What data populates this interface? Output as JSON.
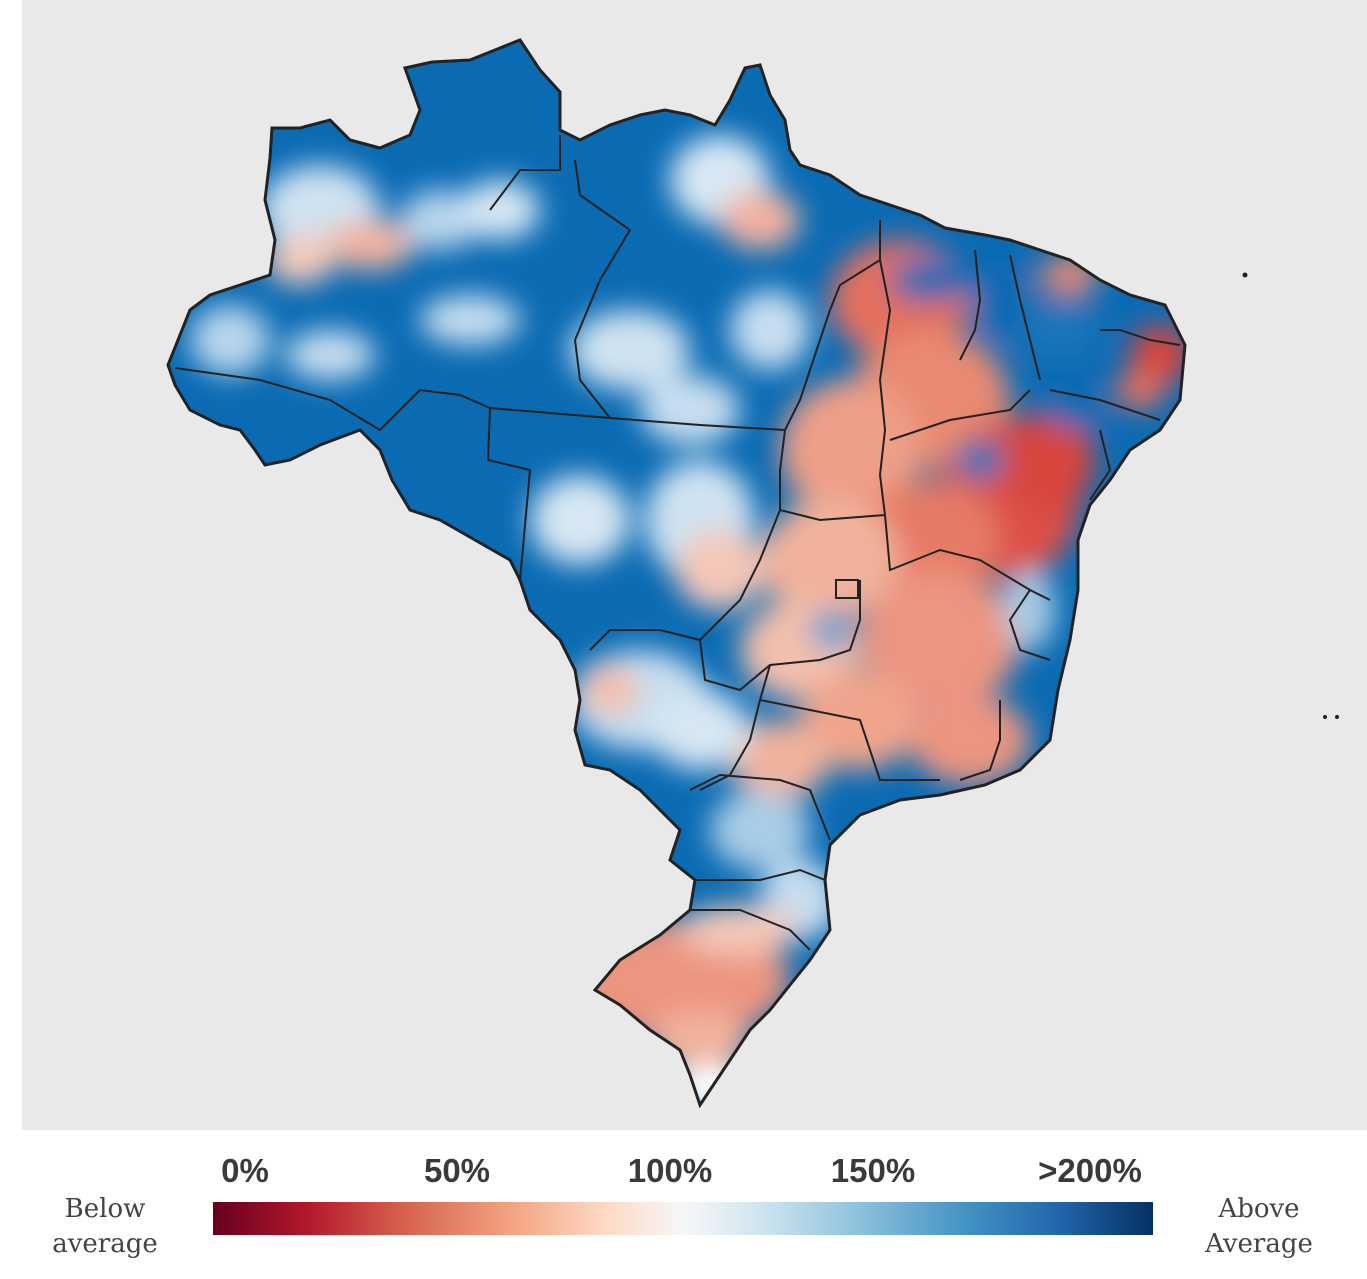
{
  "map": {
    "region": "Brazil",
    "colors": {
      "ocean": "#e9e9e9",
      "strong_blue": "#0a6bb3",
      "light_blue": "#a9cde6",
      "near_avg": "#f2efee",
      "light_red": "#f0a48b",
      "strong_red": "#d8453c",
      "border": "#222222"
    }
  },
  "legend": {
    "below_label": "Below\naverage",
    "above_label": "Above\nAverage",
    "ticks": [
      "0%",
      "50%",
      "100%",
      "150%",
      ">200%"
    ],
    "colorscale": [
      "#67001f",
      "#b2182b",
      "#d6604d",
      "#f4a582",
      "#fddbc7",
      "#f7f7f7",
      "#d1e5f0",
      "#92c5de",
      "#4393c3",
      "#2166ac",
      "#053061"
    ]
  }
}
